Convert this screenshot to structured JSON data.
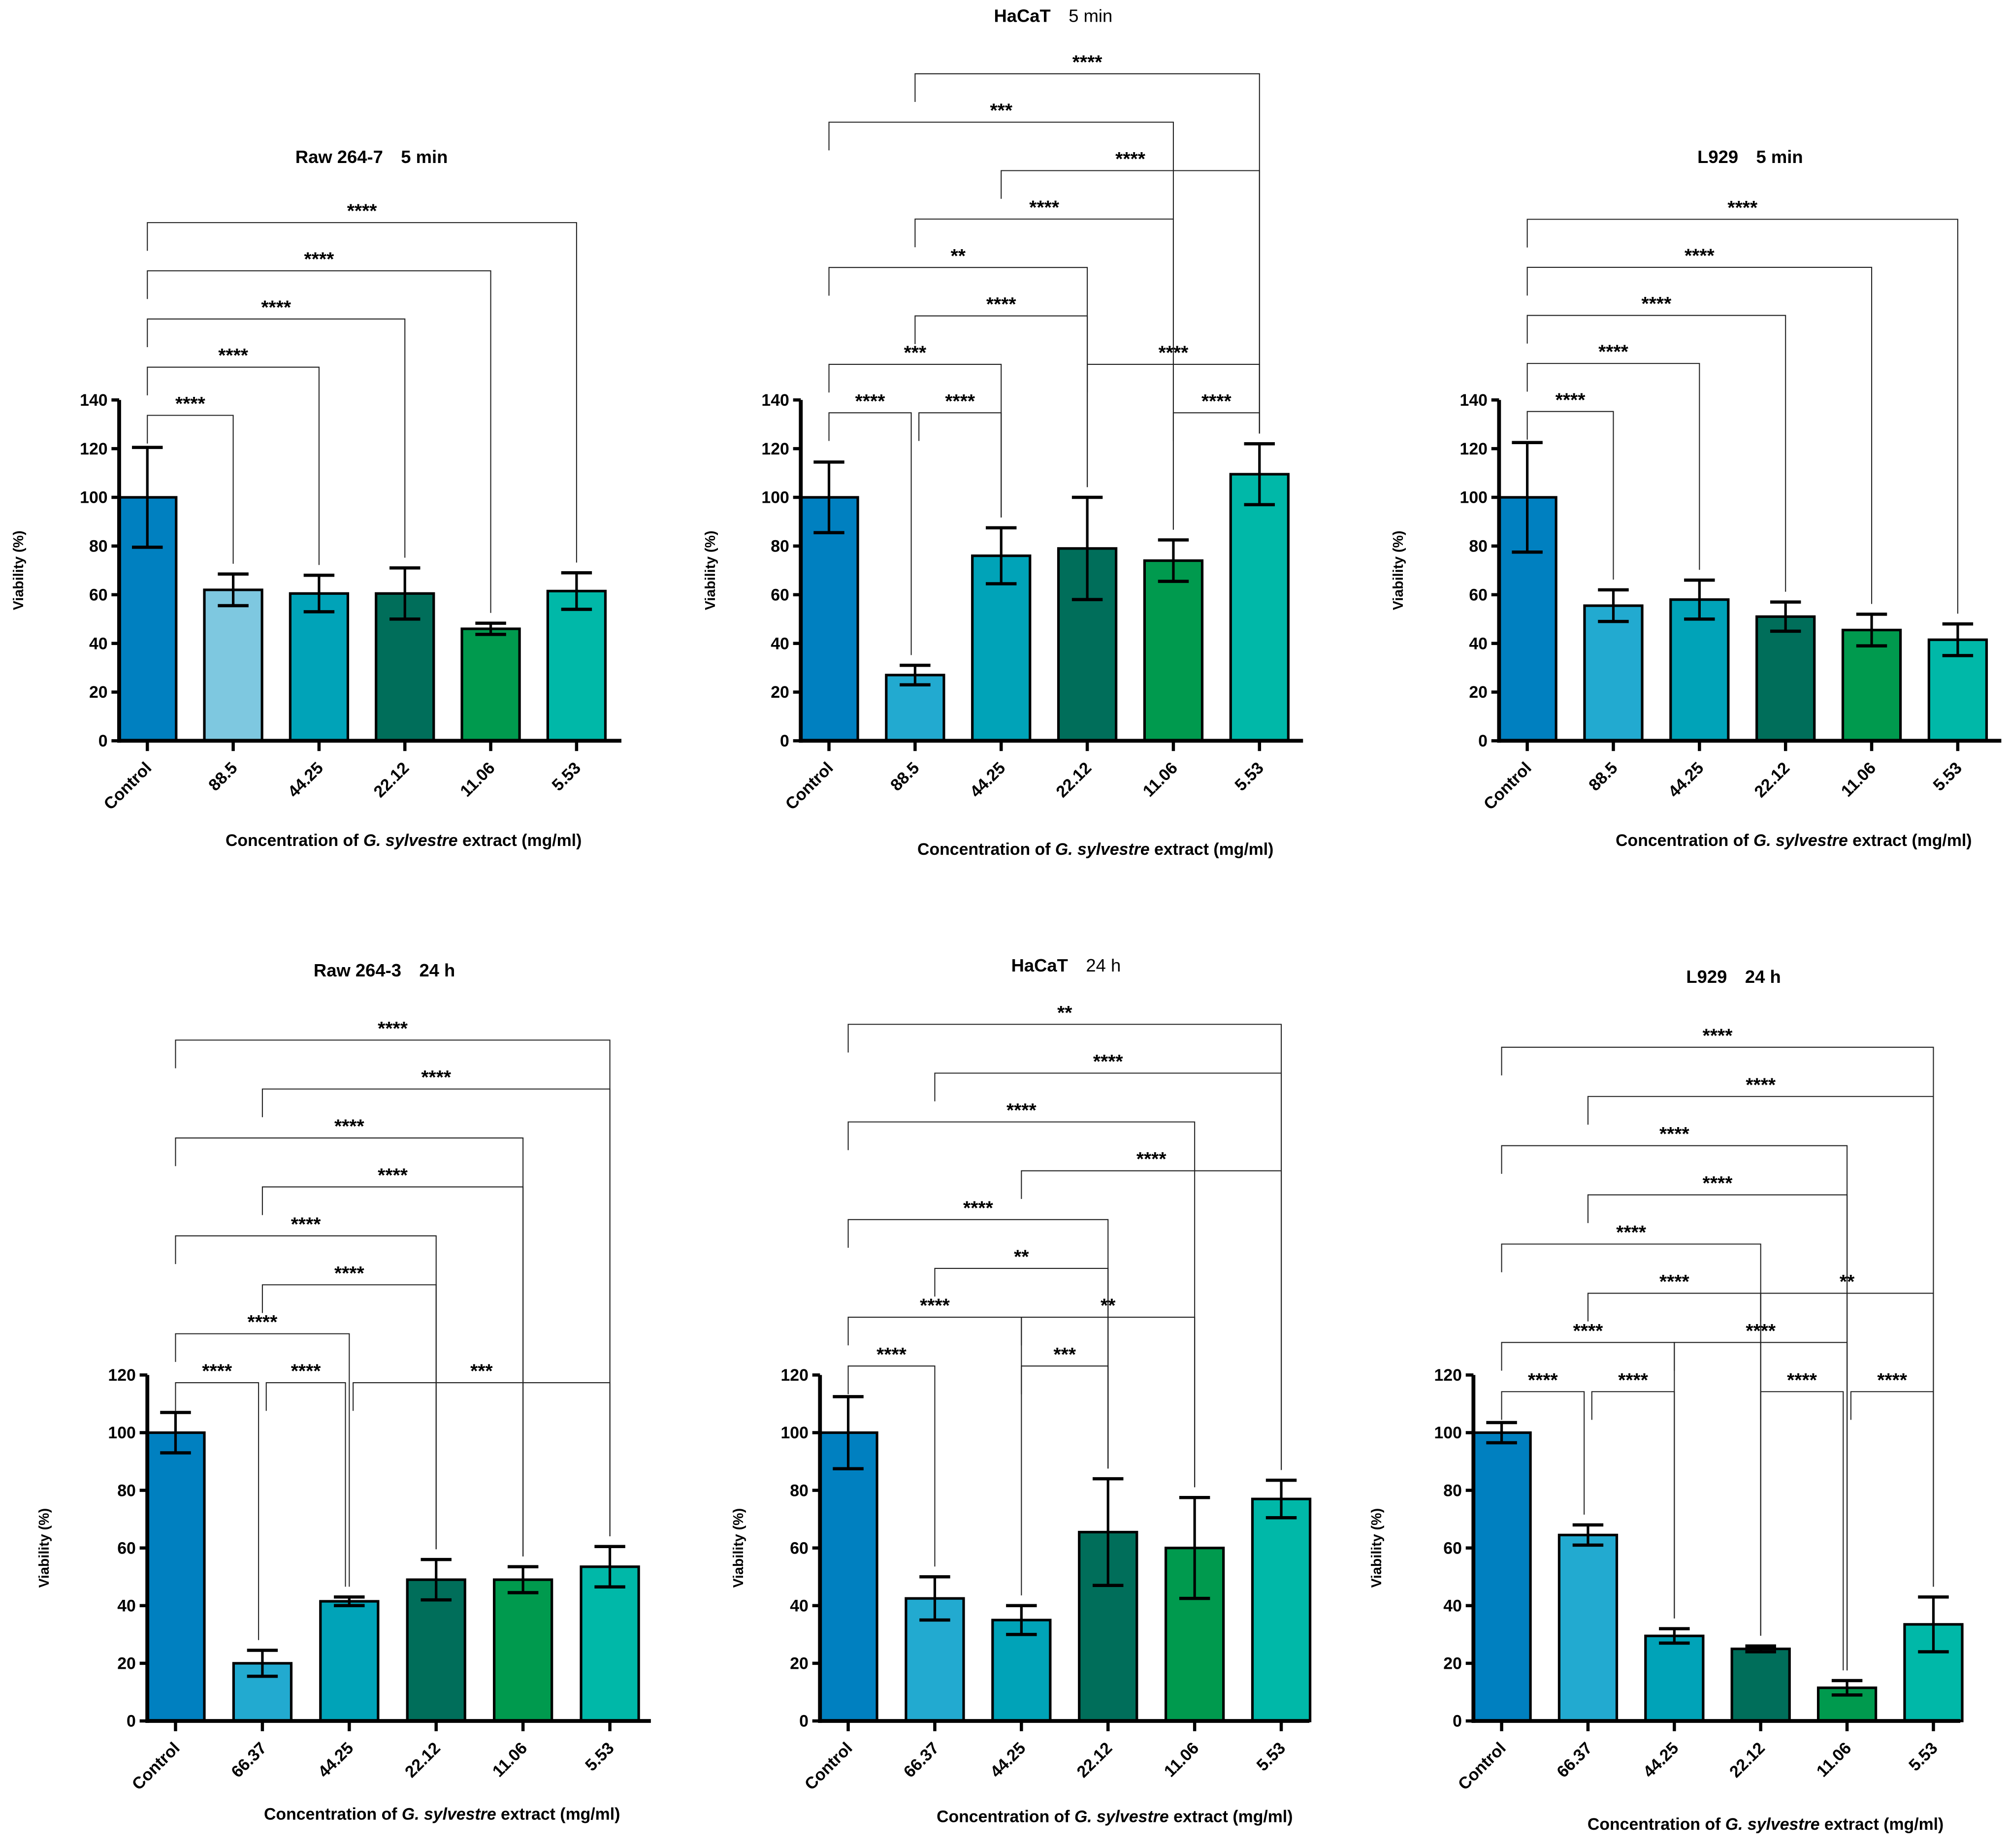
{
  "chart_data": [
    {
      "type": "bar",
      "title": {
        "cell": "Raw 264-7",
        "time": "5 min",
        "time_bold": true
      },
      "categories": [
        "Control",
        "88.5",
        "44.25",
        "22.12",
        "11.06",
        "5.53"
      ],
      "values": [
        100,
        62,
        60.5,
        60.5,
        46,
        61.5
      ],
      "errors": [
        20.5,
        6.5,
        7.5,
        10.5,
        2.3,
        7.5
      ],
      "colors": [
        "#0080c0",
        "#7ec8e0",
        "#00a3b8",
        "#006e5a",
        "#009a4e",
        "#00b8a8"
      ],
      "ylim": [
        0,
        140
      ],
      "yticks": [
        "0",
        "20",
        "40",
        "60",
        "80",
        "100",
        "120",
        "140"
      ],
      "ylabel": "Viability (%)",
      "xlabel": {
        "pre": "Concentration of ",
        "italic": "G. sylvestre",
        "post": " extract (mg/ml)"
      },
      "comparisons": [
        {
          "from": 0,
          "to": 1,
          "label": "****",
          "tier": 0
        },
        {
          "from": 0,
          "to": 2,
          "label": "****",
          "tier": 1
        },
        {
          "from": 0,
          "to": 3,
          "label": "****",
          "tier": 2
        },
        {
          "from": 0,
          "to": 4,
          "label": "****",
          "tier": 3
        },
        {
          "from": 0,
          "to": 5,
          "label": "****",
          "tier": 4
        }
      ]
    },
    {
      "type": "bar",
      "title": {
        "cell": "HaCaT",
        "time": "5 min",
        "time_bold": false
      },
      "categories": [
        "Control",
        "88.5",
        "44.25",
        "22.12",
        "11.06",
        "5.53"
      ],
      "values": [
        100,
        27,
        76,
        79,
        74,
        109.5
      ],
      "errors": [
        14.5,
        4,
        11.5,
        21,
        8.5,
        12.5
      ],
      "colors": [
        "#0080c0",
        "#22aad0",
        "#00a3b8",
        "#006e5a",
        "#009a4e",
        "#00b8a8"
      ],
      "ylim": [
        0,
        140
      ],
      "yticks": [
        "0",
        "20",
        "40",
        "60",
        "80",
        "100",
        "120",
        "140"
      ],
      "ylabel": "Viability (%)",
      "xlabel": {
        "pre": "Concentration of ",
        "italic": "G. sylvestre",
        "post": " extract (mg/ml)"
      },
      "comparisons": [
        {
          "from": 0,
          "to": 1,
          "label": "****",
          "tier": 0
        },
        {
          "from": 1,
          "to": 2,
          "label": "****",
          "tier": 0
        },
        {
          "from": 4,
          "to": 5,
          "label": "****",
          "tier": 0
        },
        {
          "from": 0,
          "to": 2,
          "label": "***",
          "tier": 1
        },
        {
          "from": 3,
          "to": 5,
          "label": "****",
          "tier": 1
        },
        {
          "from": 1,
          "to": 3,
          "label": "****",
          "tier": 2
        },
        {
          "from": 0,
          "to": 3,
          "label": "**",
          "tier": 3
        },
        {
          "from": 1,
          "to": 4,
          "label": "****",
          "tier": 4
        },
        {
          "from": 2,
          "to": 5,
          "label": "****",
          "tier": 5
        },
        {
          "from": 0,
          "to": 4,
          "label": "***",
          "tier": 6
        },
        {
          "from": 1,
          "to": 5,
          "label": "****",
          "tier": 7
        }
      ]
    },
    {
      "type": "bar",
      "title": {
        "cell": "L929",
        "time": "5 min",
        "time_bold": true
      },
      "categories": [
        "Control",
        "88.5",
        "44.25",
        "22.12",
        "11.06",
        "5.53"
      ],
      "values": [
        100,
        55.5,
        58,
        51,
        45.5,
        41.5
      ],
      "errors": [
        22.5,
        6.5,
        8,
        6,
        6.5,
        6.5
      ],
      "colors": [
        "#0080c0",
        "#22aad0",
        "#00a3b8",
        "#006e5a",
        "#009a4e",
        "#00b8a8"
      ],
      "ylim": [
        0,
        140
      ],
      "yticks": [
        "0",
        "20",
        "40",
        "60",
        "80",
        "100",
        "120",
        "140"
      ],
      "ylabel": "Viability (%)",
      "xlabel": {
        "pre": "Concentration of ",
        "italic": "G. sylvestre",
        "post": " extract (mg/ml)"
      },
      "comparisons": [
        {
          "from": 0,
          "to": 1,
          "label": "****",
          "tier": 0
        },
        {
          "from": 0,
          "to": 2,
          "label": "****",
          "tier": 1
        },
        {
          "from": 0,
          "to": 3,
          "label": "****",
          "tier": 2
        },
        {
          "from": 0,
          "to": 4,
          "label": "****",
          "tier": 3
        },
        {
          "from": 0,
          "to": 5,
          "label": "****",
          "tier": 4
        }
      ]
    },
    {
      "type": "bar",
      "title": {
        "cell": "Raw 264-3",
        "time": "24 h",
        "time_bold": true
      },
      "categories": [
        "Control",
        "66.37",
        "44.25",
        "22.12",
        "11.06",
        "5.53"
      ],
      "values": [
        100,
        20,
        41.5,
        49,
        49,
        53.5
      ],
      "errors": [
        7,
        4.5,
        1.5,
        7,
        4.5,
        7
      ],
      "colors": [
        "#0080c0",
        "#22aad0",
        "#00a3b8",
        "#006e5a",
        "#009a4e",
        "#00b8a8"
      ],
      "ylim": [
        0,
        120
      ],
      "yticks": [
        "0",
        "20",
        "40",
        "60",
        "80",
        "100",
        "120"
      ],
      "ylabel": "Viability (%)",
      "xlabel": {
        "pre": "Concentration of ",
        "italic": "G. sylvestre",
        "post": " extract (mg/ml)"
      },
      "comparisons": [
        {
          "from": 0,
          "to": 1,
          "label": "****",
          "tier": 0
        },
        {
          "from": 1,
          "to": 2,
          "label": "****",
          "tier": 0
        },
        {
          "from": 2,
          "to": 5,
          "label": "***",
          "tier": 0
        },
        {
          "from": 0,
          "to": 2,
          "label": "****",
          "tier": 1
        },
        {
          "from": 1,
          "to": 3,
          "label": "****",
          "tier": 2
        },
        {
          "from": 0,
          "to": 3,
          "label": "****",
          "tier": 3
        },
        {
          "from": 1,
          "to": 4,
          "label": "****",
          "tier": 4
        },
        {
          "from": 0,
          "to": 4,
          "label": "****",
          "tier": 5
        },
        {
          "from": 1,
          "to": 5,
          "label": "****",
          "tier": 6
        },
        {
          "from": 0,
          "to": 5,
          "label": "****",
          "tier": 7
        }
      ]
    },
    {
      "type": "bar",
      "title": {
        "cell": "HaCaT",
        "time": "24 h",
        "time_bold": false
      },
      "categories": [
        "Control",
        "66.37",
        "44.25",
        "22.12",
        "11.06",
        "5.53"
      ],
      "values": [
        100,
        42.5,
        35,
        65.5,
        60,
        77
      ],
      "errors": [
        12.5,
        7.5,
        5,
        18.5,
        17.5,
        6.5
      ],
      "colors": [
        "#0080c0",
        "#22aad0",
        "#00a3b8",
        "#006e5a",
        "#009a4e",
        "#00b8a8"
      ],
      "ylim": [
        0,
        120
      ],
      "yticks": [
        "0",
        "20",
        "40",
        "60",
        "80",
        "100",
        "120"
      ],
      "ylabel": "Viability (%)",
      "xlabel": {
        "pre": "Concentration of ",
        "italic": "G. sylvestre",
        "post": " extract (mg/ml)"
      },
      "comparisons": [
        {
          "from": 0,
          "to": 1,
          "label": "****",
          "tier": 0
        },
        {
          "from": 2,
          "to": 3,
          "label": "***",
          "tier": 0
        },
        {
          "from": 0,
          "to": 2,
          "label": "****",
          "tier": 1
        },
        {
          "from": 2,
          "to": 4,
          "label": "**",
          "tier": 1
        },
        {
          "from": 1,
          "to": 3,
          "label": "**",
          "tier": 2
        },
        {
          "from": 0,
          "to": 3,
          "label": "****",
          "tier": 3
        },
        {
          "from": 2,
          "to": 5,
          "label": "****",
          "tier": 4
        },
        {
          "from": 0,
          "to": 4,
          "label": "****",
          "tier": 5
        },
        {
          "from": 1,
          "to": 5,
          "label": "****",
          "tier": 6
        },
        {
          "from": 0,
          "to": 5,
          "label": "**",
          "tier": 7
        }
      ]
    },
    {
      "type": "bar",
      "title": {
        "cell": "L929",
        "time": "24 h",
        "time_bold": true
      },
      "categories": [
        "Control",
        "66.37",
        "44.25",
        "22.12",
        "11.06",
        "5.53"
      ],
      "values": [
        100,
        64.5,
        29.5,
        25,
        11.5,
        33.5
      ],
      "errors": [
        3.5,
        3.5,
        2.5,
        1,
        2.5,
        9.5
      ],
      "colors": [
        "#0080c0",
        "#22aad0",
        "#00a3b8",
        "#006e5a",
        "#009a4e",
        "#00b8a8"
      ],
      "ylim": [
        0,
        120
      ],
      "yticks": [
        "0",
        "20",
        "40",
        "60",
        "80",
        "100",
        "120"
      ],
      "ylabel": "Viability (%)",
      "xlabel": {
        "pre": "Concentration of ",
        "italic": "G. sylvestre",
        "post": " extract (mg/ml)"
      },
      "comparisons": [
        {
          "from": 0,
          "to": 1,
          "label": "****",
          "tier": 0
        },
        {
          "from": 1,
          "to": 2,
          "label": "****",
          "tier": 0
        },
        {
          "from": 3,
          "to": 4,
          "label": "****",
          "tier": 0
        },
        {
          "from": 4,
          "to": 5,
          "label": "****",
          "tier": 0
        },
        {
          "from": 0,
          "to": 2,
          "label": "****",
          "tier": 1
        },
        {
          "from": 2,
          "to": 4,
          "label": "****",
          "tier": 1
        },
        {
          "from": 1,
          "to": 3,
          "label": "****",
          "tier": 2
        },
        {
          "from": 3,
          "to": 5,
          "label": "**",
          "tier": 2
        },
        {
          "from": 0,
          "to": 3,
          "label": "****",
          "tier": 3
        },
        {
          "from": 1,
          "to": 4,
          "label": "****",
          "tier": 4
        },
        {
          "from": 0,
          "to": 4,
          "label": "****",
          "tier": 5
        },
        {
          "from": 1,
          "to": 5,
          "label": "****",
          "tier": 6
        },
        {
          "from": 0,
          "to": 5,
          "label": "****",
          "tier": 7
        }
      ]
    }
  ]
}
